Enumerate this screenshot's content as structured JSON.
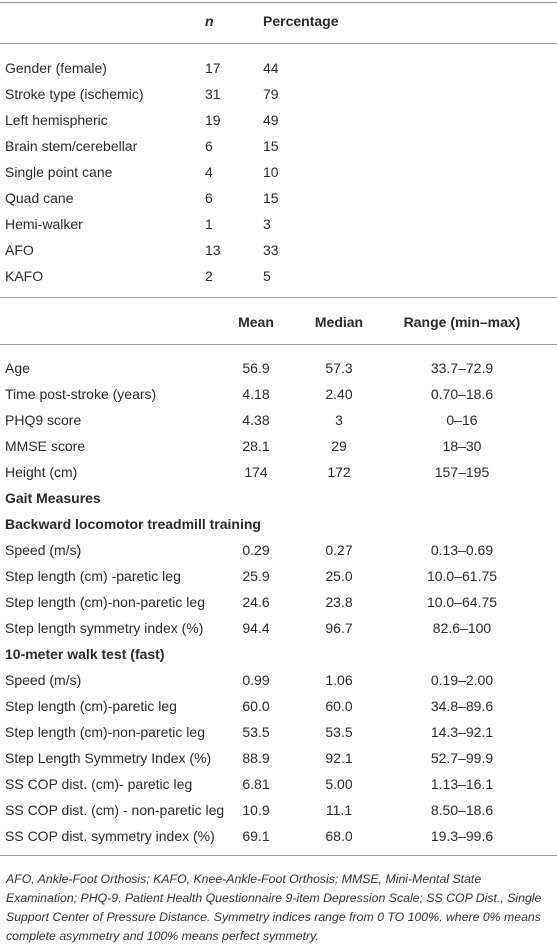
{
  "table1": {
    "header": [
      "n",
      "Percentage"
    ],
    "rows": [
      [
        "Gender (female)",
        "17",
        "44"
      ],
      [
        "Stroke type (ischemic)",
        "31",
        "79"
      ],
      [
        "Left hemispheric",
        "19",
        "49"
      ],
      [
        "Brain stem/cerebellar",
        "6",
        "15"
      ],
      [
        "Single point cane",
        "4",
        "10"
      ],
      [
        "Quad cane",
        "6",
        "15"
      ],
      [
        "Hemi-walker",
        "1",
        "3"
      ],
      [
        "AFO",
        "13",
        "33"
      ],
      [
        "KAFO",
        "2",
        "5"
      ]
    ]
  },
  "table2": {
    "header": [
      "Mean",
      "Median",
      "Range (min–max)"
    ],
    "rows": [
      [
        "Age",
        "56.9",
        "57.3",
        "33.7–72.9"
      ],
      [
        "Time post-stroke (years)",
        "4.18",
        "2.40",
        "0.70–18.6"
      ],
      [
        "PHQ9 score",
        "4.38",
        "3",
        "0–16"
      ],
      [
        "MMSE score",
        "28.1",
        "29",
        "18–30"
      ],
      [
        "Height (cm)",
        "174",
        "172",
        "157–195"
      ],
      [
        "Gait Measures"
      ],
      [
        "Backward locomotor treadmill training"
      ],
      [
        "Speed (m/s)",
        "0.29",
        "0.27",
        "0.13–0.69"
      ],
      [
        "Step length (cm) -paretic leg",
        "25.9",
        "25.0",
        "10.0–61.75"
      ],
      [
        "Step length (cm)-non-paretic leg",
        "24.6",
        "23.8",
        "10.0–64.75"
      ],
      [
        "Step length symmetry index (%)",
        "94.4",
        "96.7",
        "82.6–100"
      ],
      [
        "10-meter walk test (fast)"
      ],
      [
        "Speed (m/s)",
        "0.99",
        "1.06",
        "0.19–2.00"
      ],
      [
        "Step length (cm)-paretic leg",
        "60.0",
        "60.0",
        "34.8–89.6"
      ],
      [
        "Step length (cm)-non-paretic leg",
        "53.5",
        "53.5",
        "14.3–92.1"
      ],
      [
        "Step Length Symmetry Index (%)",
        "88.9",
        "92.1",
        "52.7–99.9"
      ],
      [
        "SS COP dist. (cm)- paretic leg",
        "6.81",
        "5.00",
        "1.13–16.1"
      ],
      [
        "SS COP dist. (cm) - non-paretic leg",
        "10.9",
        "11.1",
        "8.50–18.6"
      ],
      [
        "SS COP dist. symmetry index (%)",
        "69.1",
        "68.0",
        "19.3–99.6"
      ]
    ]
  },
  "footnote": "AFO, Ankle-Foot Orthosis; KAFO, Knee-Ankle-Foot Orthosis; MMSE, Mini-Mental State Examination; PHQ-9, Patient Health Questionnaire 9-item Depression Scale; SS COP Dist., Single Support Center of Pressure Distance. Symmetry indices range from 0 TO 100%, where 0% means complete asymmetry and 100% means perfect symmetry."
}
